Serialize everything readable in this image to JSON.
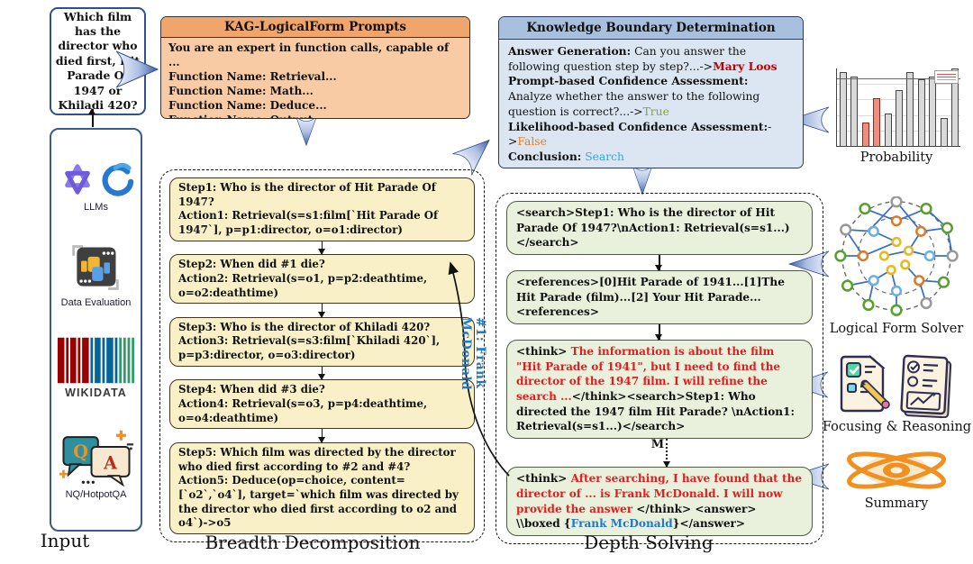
{
  "question_box": {
    "text": "Which film has the director who died first, Hit Parade Of 1947 or Khiladi 420?"
  },
  "input_panel": {
    "caption": "Input",
    "items": [
      {
        "label": "LLMs"
      },
      {
        "label": "Data Evaluation"
      },
      {
        "label": "WIKIDATA"
      },
      {
        "label": "NQ/HotpotQA"
      }
    ]
  },
  "qa_icon": {
    "q": "Q",
    "a": "A"
  },
  "prompts_box": {
    "title": "KAG-LogicalForm Prompts",
    "lines": [
      "You are an expert in function calls, capable of ...",
      "Function Name: Retrieval...",
      "Function Name: Math...",
      "Function Name: Deduce...",
      "Function Name: Output..."
    ]
  },
  "kb_box": {
    "title": "Knowledge Boundary Determination",
    "lines": [
      [
        {
          "t": "Answer Generation:",
          "b": true
        },
        {
          "t": " Can you answer the following question step by step?...->"
        },
        {
          "t": "Mary Loos",
          "c": "#c00000",
          "b": true
        }
      ],
      [
        {
          "t": "Prompt-based Confidence Assessment:",
          "b": true
        },
        {
          "t": " Analyze whether the answer to the following question is correct?...->"
        },
        {
          "t": "True",
          "c": "#7ca636"
        }
      ],
      [
        {
          "t": "Likelihood-based Confidence Assessment:",
          "b": true
        },
        {
          "t": "->"
        },
        {
          "t": "False",
          "c": "#e87c1e"
        }
      ],
      [
        {
          "t": "Conclusion:",
          "b": true
        },
        {
          "t": " "
        },
        {
          "t": "Search",
          "c": "#2ba9e0"
        }
      ]
    ]
  },
  "breadth": {
    "caption": "Breadth Decomposition",
    "steps": [
      {
        "lines": [
          "Step1: Who is the director of Hit Parade Of 1947?",
          "Action1: Retrieval(s=s1:film[`Hit Parade Of 1947`], p=p1:director, o=o1:director)"
        ]
      },
      {
        "lines": [
          "Step2: When did #1 die?",
          "Action2: Retrieval(s=o1, p=p2:deathtime, o=o2:deathtime)"
        ]
      },
      {
        "lines": [
          "Step3: Who is the director of Khiladi 420?",
          "Action3: Retrieval(s=s3:film[`Khiladi 420`], p=p3:director, o=o3:director)"
        ]
      },
      {
        "lines": [
          "Step4: When did #3 die?",
          "Action4: Retrieval(s=o3, p=p4:deathtime, o=o4:deathtime)"
        ]
      },
      {
        "lines": [
          "Step5: Which film was directed by the director who died first according to #2 and #4?",
          "Action5: Deduce(op=choice, content=[`o2`,`o4`], target=`which film was directed by the director who died first according to o2 and o4`)->o5"
        ]
      }
    ]
  },
  "depth": {
    "caption": "Depth Solving",
    "m_label": "M",
    "boxes": [
      [
        {
          "t": "<search>Step1: Who is the director of Hit Parade Of 1947?\\nAction1: Retrieval(s=s1...)</search>"
        }
      ],
      [
        {
          "t": "<references>[0]Hit Parade of 1941...[1]The Hit Parade (film)...[2] Your Hit Parade...<references>"
        }
      ],
      [
        {
          "t": "<think> "
        },
        {
          "t": "The information is about the film \"Hit Parade of 1941\", but I need to find the director of the 1947 film. I will refine the search ...",
          "c": "#e02020"
        },
        {
          "t": "</think><search>Step1:  Who directed the 1947 film Hit Parade? \\nAction1: Retrieval(s=s1...)</search>"
        }
      ],
      [
        {
          "t": "<think> "
        },
        {
          "t": "After searching, I have found that the director of ... is Frank McDonald. I will now provide the answer ",
          "c": "#e02020"
        },
        {
          "t": "</think> <answer> \\\\boxed {"
        },
        {
          "t": "Frank McDonald",
          "c": "#1f78c8"
        },
        {
          "t": "}</answer>"
        }
      ]
    ]
  },
  "feedback_label": "#1: Frank McDonald",
  "right_icons": {
    "probability_label": "Probability",
    "lfs_label": "Logical Form Solver",
    "fr_label": "Focusing & Reasoning",
    "summary_label": "Summary"
  },
  "probability_chart": {
    "type": "bar",
    "values": [
      0.95,
      0.9,
      0.3,
      0.62,
      0.42,
      0.72,
      0.95,
      0.86,
      0.9,
      0.36,
      1.0
    ],
    "highlight_indices": [
      2,
      3
    ],
    "threshold": 0.87
  },
  "colors": {
    "accent_red": "#e02020",
    "answer_red": "#c00000",
    "true_green": "#7ca636",
    "false_orange": "#e87c1e",
    "search_cyan": "#2ba9e0",
    "link_blue": "#1f78c8"
  }
}
